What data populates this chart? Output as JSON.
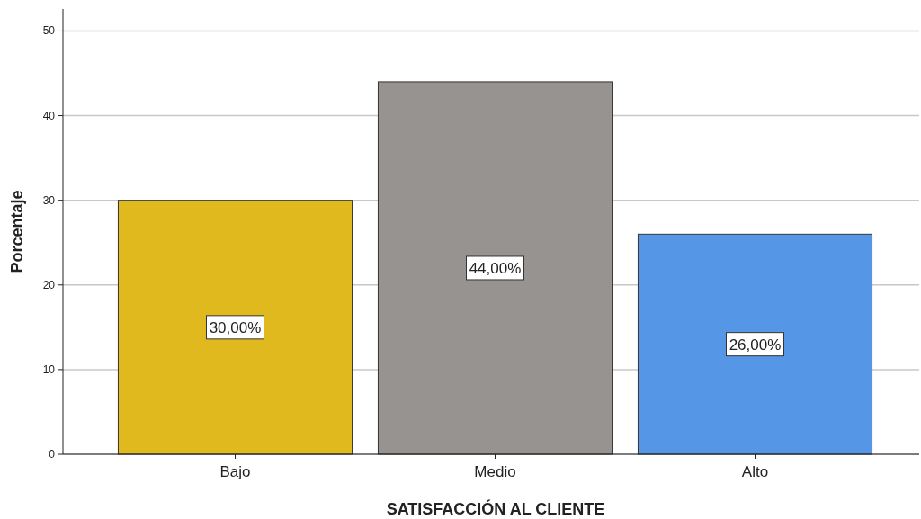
{
  "chart_data": {
    "type": "bar",
    "xlabel": "SATISFACCIÓN AL CLIENTE",
    "ylabel": "Porcentaje",
    "categories": [
      "Bajo",
      "Medio",
      "Alto"
    ],
    "values": [
      30,
      44,
      26
    ],
    "colors": [
      "#e0b91f",
      "#969391",
      "#5596e6"
    ],
    "value_labels": [
      "30,00%",
      "44,00%",
      "26,00%"
    ],
    "ylim": [
      0,
      52.6
    ],
    "yticks": [
      0,
      10,
      20,
      30,
      40,
      50
    ],
    "grid": "y"
  }
}
